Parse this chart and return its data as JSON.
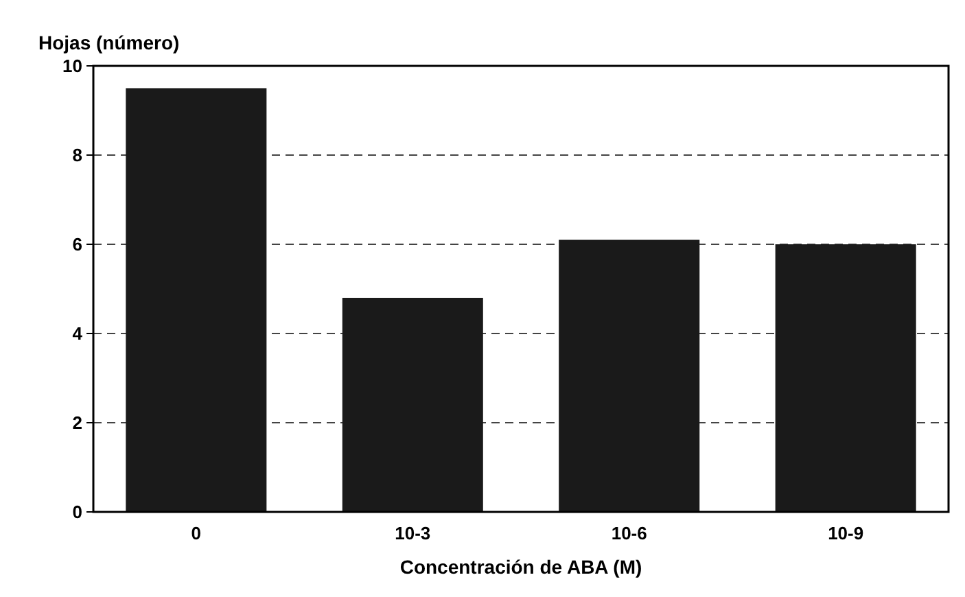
{
  "chart_data": {
    "type": "bar",
    "ylabel": "Hojas (número)",
    "xlabel": "Concentración de ABA (M)",
    "categories": [
      "0",
      "10-3",
      "10-6",
      "10-9"
    ],
    "values": [
      9.5,
      4.8,
      6.1,
      6.0
    ],
    "color": "#1a1a1a",
    "ylim": [
      0,
      10
    ],
    "yticks": [
      0,
      2,
      4,
      6,
      8,
      10
    ],
    "grid": "y"
  }
}
